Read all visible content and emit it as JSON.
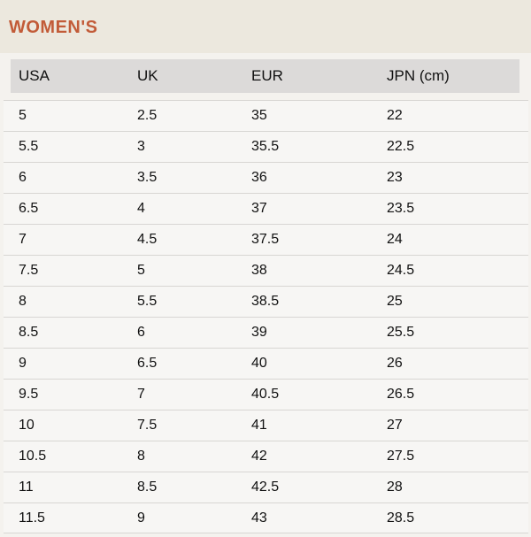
{
  "title": "WOMEN'S",
  "colors": {
    "accent_title": "#c25b38",
    "band_bg": "#ece8de",
    "page_bg": "#f4f2ee",
    "header_row_bg": "#dcdad9",
    "row_bg": "#f7f6f4",
    "row_border": "#d8d6d3"
  },
  "chart_data": {
    "type": "table",
    "title": "WOMEN'S",
    "columns": [
      "USA",
      "UK",
      "EUR",
      "JPN (cm)"
    ],
    "rows": [
      [
        "5",
        "2.5",
        "35",
        "22"
      ],
      [
        "5.5",
        "3",
        "35.5",
        "22.5"
      ],
      [
        "6",
        "3.5",
        "36",
        "23"
      ],
      [
        "6.5",
        "4",
        "37",
        "23.5"
      ],
      [
        "7",
        "4.5",
        "37.5",
        "24"
      ],
      [
        "7.5",
        "5",
        "38",
        "24.5"
      ],
      [
        "8",
        "5.5",
        "38.5",
        "25"
      ],
      [
        "8.5",
        "6",
        "39",
        "25.5"
      ],
      [
        "9",
        "6.5",
        "40",
        "26"
      ],
      [
        "9.5",
        "7",
        "40.5",
        "26.5"
      ],
      [
        "10",
        "7.5",
        "41",
        "27"
      ],
      [
        "10.5",
        "8",
        "42",
        "27.5"
      ],
      [
        "11",
        "8.5",
        "42.5",
        "28"
      ],
      [
        "11.5",
        "9",
        "43",
        "28.5"
      ]
    ]
  }
}
